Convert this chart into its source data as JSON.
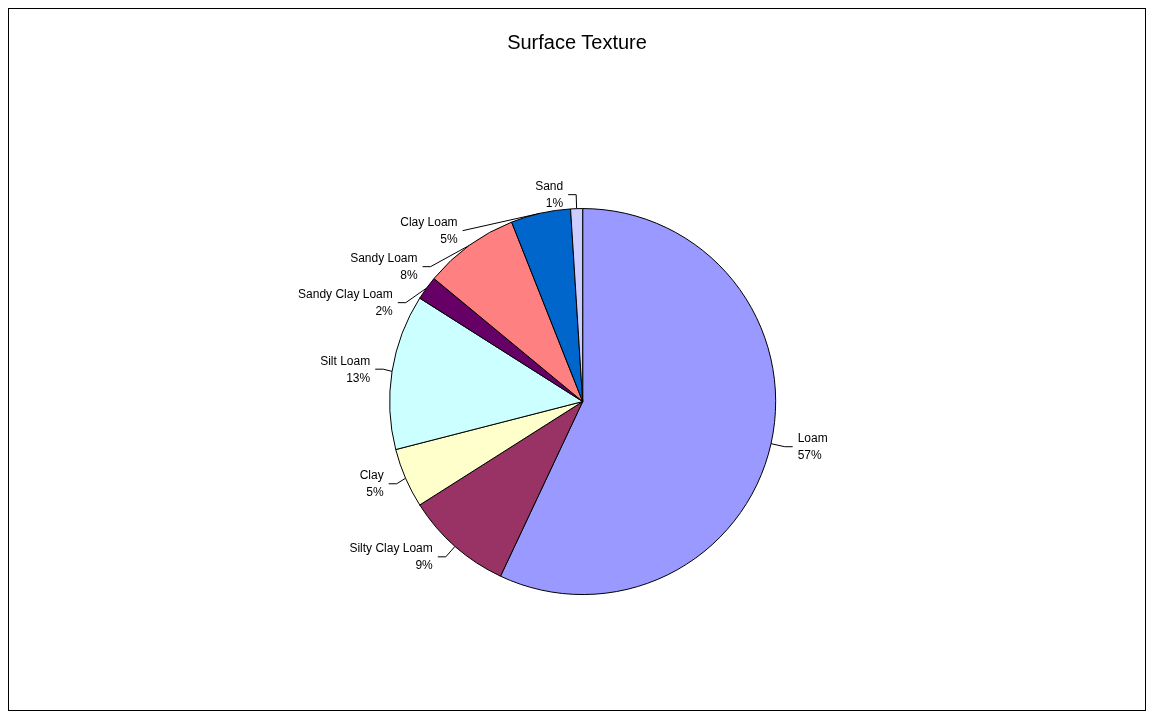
{
  "chart_data": {
    "type": "pie",
    "title": "Surface Texture",
    "categories": [
      "Loam",
      "Silty Clay Loam",
      "Clay",
      "Silt Loam",
      "Sandy Clay Loam",
      "Sandy Loam",
      "Clay Loam",
      "Sand"
    ],
    "values": [
      57,
      9,
      5,
      13,
      2,
      8,
      5,
      1
    ],
    "colors": [
      "#9999ff",
      "#993366",
      "#ffffcc",
      "#ccffff",
      "#660066",
      "#ff8080",
      "#0066cc",
      "#ccccff"
    ],
    "value_labels": [
      "57%",
      "9%",
      "5%",
      "13%",
      "2%",
      "8%",
      "5%",
      "1%"
    ],
    "legend": false
  }
}
